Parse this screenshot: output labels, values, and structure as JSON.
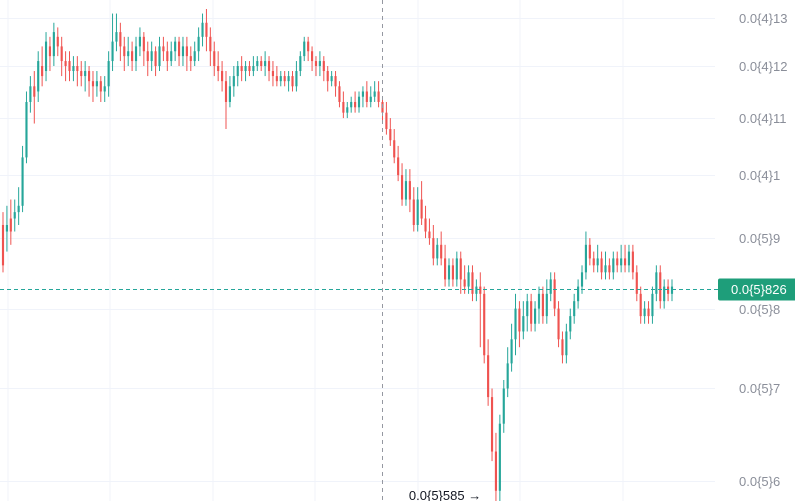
{
  "colors": {
    "up": "#26a69a",
    "down": "#ef5350",
    "grid": "#f0f3fa",
    "axis_text": "#8a8e99",
    "last_price_tag": "#1e9e7a",
    "crosshair": "#9598a1"
  },
  "chart_data": {
    "type": "candlestick",
    "title": "",
    "xlabel": "",
    "ylabel": "",
    "y_scale": "log",
    "ylim": [
      5.8e-06,
      1.34e-05
    ],
    "grid": true,
    "y_ticks": [
      {
        "value": 1.3e-05,
        "label": "0.0{4}13"
      },
      {
        "value": 1.2e-05,
        "label": "0.0{4}12"
      },
      {
        "value": 1.1e-05,
        "label": "0.0{4}11"
      },
      {
        "value": 1e-05,
        "label": "0.0{4}1"
      },
      {
        "value": 9e-06,
        "label": "0.0{5}9"
      },
      {
        "value": 8e-06,
        "label": "0.0{5}8"
      },
      {
        "value": 7e-06,
        "label": "0.0{5}7"
      },
      {
        "value": 6e-06,
        "label": "0.0{5}6"
      }
    ],
    "last_price": {
      "value": 8.26e-06,
      "label": "0.0{5}826"
    },
    "low_marker": {
      "value": 5.85e-06,
      "label": "0.0{5}585",
      "arrow": "→",
      "index": 123
    },
    "crosshair_index": 97,
    "candles": [
      [
        9.2e-06,
        8.6e-06,
        9.4e-06,
        8.5e-06
      ],
      [
        9.1e-06,
        9.2e-06,
        9.5e-06,
        8.8e-06
      ],
      [
        9.3e-06,
        9.1e-06,
        9.6e-06,
        8.9e-06
      ],
      [
        9.3e-06,
        9.4e-06,
        9.6e-06,
        9.1e-06
      ],
      [
        9.4e-06,
        9.5e-06,
        9.8e-06,
        9.2e-06
      ],
      [
        9.5e-06,
        1.03e-05,
        1.05e-05,
        9.4e-06
      ],
      [
        1.03e-05,
        1.13e-05,
        1.15e-05,
        1.02e-05
      ],
      [
        1.13e-05,
        1.16e-05,
        1.18e-05,
        1.11e-05
      ],
      [
        1.16e-05,
        1.14e-05,
        1.19e-05,
        1.09e-05
      ],
      [
        1.15e-05,
        1.21e-05,
        1.23e-05,
        1.13e-05
      ],
      [
        1.2e-05,
        1.18e-05,
        1.24e-05,
        1.16e-05
      ],
      [
        1.19e-05,
        1.25e-05,
        1.27e-05,
        1.17e-05
      ],
      [
        1.24e-05,
        1.22e-05,
        1.26e-05,
        1.19e-05
      ],
      [
        1.22e-05,
        1.27e-05,
        1.29e-05,
        1.2e-05
      ],
      [
        1.26e-05,
        1.24e-05,
        1.28e-05,
        1.22e-05
      ],
      [
        1.24e-05,
        1.21e-05,
        1.26e-05,
        1.18e-05
      ],
      [
        1.21e-05,
        1.2e-05,
        1.23e-05,
        1.17e-05
      ],
      [
        1.21e-05,
        1.19e-05,
        1.23e-05,
        1.17e-05
      ],
      [
        1.19e-05,
        1.2e-05,
        1.22e-05,
        1.17e-05
      ],
      [
        1.2e-05,
        1.19e-05,
        1.22e-05,
        1.16e-05
      ],
      [
        1.19e-05,
        1.18e-05,
        1.21e-05,
        1.16e-05
      ],
      [
        1.18e-05,
        1.19e-05,
        1.21e-05,
        1.15e-05
      ],
      [
        1.19e-05,
        1.17e-05,
        1.2e-05,
        1.14e-05
      ],
      [
        1.17e-05,
        1.16e-05,
        1.19e-05,
        1.13e-05
      ],
      [
        1.16e-05,
        1.17e-05,
        1.19e-05,
        1.14e-05
      ],
      [
        1.17e-05,
        1.15e-05,
        1.18e-05,
        1.13e-05
      ],
      [
        1.15e-05,
        1.16e-05,
        1.18e-05,
        1.13e-05
      ],
      [
        1.16e-05,
        1.21e-05,
        1.23e-05,
        1.14e-05
      ],
      [
        1.21e-05,
        1.25e-05,
        1.31e-05,
        1.19e-05
      ],
      [
        1.25e-05,
        1.27e-05,
        1.31e-05,
        1.23e-05
      ],
      [
        1.27e-05,
        1.24e-05,
        1.29e-05,
        1.21e-05
      ],
      [
        1.24e-05,
        1.22e-05,
        1.26e-05,
        1.19e-05
      ],
      [
        1.22e-05,
        1.23e-05,
        1.26e-05,
        1.2e-05
      ],
      [
        1.23e-05,
        1.21e-05,
        1.25e-05,
        1.19e-05
      ],
      [
        1.21e-05,
        1.24e-05,
        1.26e-05,
        1.19e-05
      ],
      [
        1.24e-05,
        1.26e-05,
        1.28e-05,
        1.22e-05
      ],
      [
        1.26e-05,
        1.23e-05,
        1.27e-05,
        1.2e-05
      ],
      [
        1.23e-05,
        1.21e-05,
        1.25e-05,
        1.18e-05
      ],
      [
        1.21e-05,
        1.23e-05,
        1.25e-05,
        1.19e-05
      ],
      [
        1.23e-05,
        1.2e-05,
        1.24e-05,
        1.18e-05
      ],
      [
        1.2e-05,
        1.24e-05,
        1.26e-05,
        1.19e-05
      ],
      [
        1.24e-05,
        1.23e-05,
        1.26e-05,
        1.21e-05
      ],
      [
        1.23e-05,
        1.21e-05,
        1.25e-05,
        1.19e-05
      ],
      [
        1.21e-05,
        1.23e-05,
        1.25e-05,
        1.2e-05
      ],
      [
        1.23e-05,
        1.25e-05,
        1.26e-05,
        1.21e-05
      ],
      [
        1.25e-05,
        1.22e-05,
        1.26e-05,
        1.2e-05
      ],
      [
        1.22e-05,
        1.24e-05,
        1.26e-05,
        1.2e-05
      ],
      [
        1.24e-05,
        1.22e-05,
        1.26e-05,
        1.19e-05
      ],
      [
        1.22e-05,
        1.21e-05,
        1.24e-05,
        1.19e-05
      ],
      [
        1.21e-05,
        1.23e-05,
        1.25e-05,
        1.2e-05
      ],
      [
        1.23e-05,
        1.26e-05,
        1.28e-05,
        1.21e-05
      ],
      [
        1.26e-05,
        1.29e-05,
        1.31e-05,
        1.24e-05
      ],
      [
        1.29e-05,
        1.26e-05,
        1.32e-05,
        1.23e-05
      ],
      [
        1.26e-05,
        1.23e-05,
        1.28e-05,
        1.2e-05
      ],
      [
        1.23e-05,
        1.2e-05,
        1.25e-05,
        1.18e-05
      ],
      [
        1.2e-05,
        1.19e-05,
        1.23e-05,
        1.17e-05
      ],
      [
        1.19e-05,
        1.17e-05,
        1.21e-05,
        1.15e-05
      ],
      [
        1.17e-05,
        1.13e-05,
        1.19e-05,
        1.08e-05
      ],
      [
        1.13e-05,
        1.16e-05,
        1.18e-05,
        1.12e-05
      ],
      [
        1.16e-05,
        1.18e-05,
        1.2e-05,
        1.14e-05
      ],
      [
        1.18e-05,
        1.2e-05,
        1.21e-05,
        1.16e-05
      ],
      [
        1.2e-05,
        1.19e-05,
        1.22e-05,
        1.17e-05
      ],
      [
        1.19e-05,
        1.2e-05,
        1.21e-05,
        1.17e-05
      ],
      [
        1.2e-05,
        1.19e-05,
        1.21e-05,
        1.18e-05
      ],
      [
        1.19e-05,
        1.2e-05,
        1.22e-05,
        1.18e-05
      ],
      [
        1.2e-05,
        1.21e-05,
        1.22e-05,
        1.19e-05
      ],
      [
        1.21e-05,
        1.2e-05,
        1.22e-05,
        1.19e-05
      ],
      [
        1.2e-05,
        1.21e-05,
        1.23e-05,
        1.18e-05
      ],
      [
        1.21e-05,
        1.19e-05,
        1.22e-05,
        1.17e-05
      ],
      [
        1.19e-05,
        1.18e-05,
        1.21e-05,
        1.16e-05
      ],
      [
        1.18e-05,
        1.17e-05,
        1.2e-05,
        1.16e-05
      ],
      [
        1.17e-05,
        1.18e-05,
        1.19e-05,
        1.16e-05
      ],
      [
        1.18e-05,
        1.17e-05,
        1.19e-05,
        1.16e-05
      ],
      [
        1.17e-05,
        1.18e-05,
        1.19e-05,
        1.15e-05
      ],
      [
        1.18e-05,
        1.16e-05,
        1.19e-05,
        1.15e-05
      ],
      [
        1.16e-05,
        1.19e-05,
        1.21e-05,
        1.15e-05
      ],
      [
        1.19e-05,
        1.22e-05,
        1.23e-05,
        1.18e-05
      ],
      [
        1.22e-05,
        1.25e-05,
        1.26e-05,
        1.21e-05
      ],
      [
        1.25e-05,
        1.23e-05,
        1.26e-05,
        1.21e-05
      ],
      [
        1.23e-05,
        1.21e-05,
        1.24e-05,
        1.19e-05
      ],
      [
        1.21e-05,
        1.2e-05,
        1.22e-05,
        1.18e-05
      ],
      [
        1.2e-05,
        1.21e-05,
        1.23e-05,
        1.18e-05
      ],
      [
        1.21e-05,
        1.19e-05,
        1.22e-05,
        1.17e-05
      ],
      [
        1.19e-05,
        1.17e-05,
        1.2e-05,
        1.15e-05
      ],
      [
        1.17e-05,
        1.18e-05,
        1.19e-05,
        1.16e-05
      ],
      [
        1.18e-05,
        1.16e-05,
        1.19e-05,
        1.14e-05
      ],
      [
        1.16e-05,
        1.13e-05,
        1.17e-05,
        1.12e-05
      ],
      [
        1.13e-05,
        1.11e-05,
        1.15e-05,
        1.1e-05
      ],
      [
        1.11e-05,
        1.12e-05,
        1.13e-05,
        1.1e-05
      ],
      [
        1.12e-05,
        1.13e-05,
        1.14e-05,
        1.11e-05
      ],
      [
        1.13e-05,
        1.12e-05,
        1.15e-05,
        1.11e-05
      ],
      [
        1.12e-05,
        1.14e-05,
        1.15e-05,
        1.11e-05
      ],
      [
        1.14e-05,
        1.15e-05,
        1.16e-05,
        1.12e-05
      ],
      [
        1.15e-05,
        1.13e-05,
        1.17e-05,
        1.12e-05
      ],
      [
        1.13e-05,
        1.14e-05,
        1.16e-05,
        1.12e-05
      ],
      [
        1.14e-05,
        1.15e-05,
        1.17e-05,
        1.13e-05
      ],
      [
        1.15e-05,
        1.13e-05,
        1.17e-05,
        1.12e-05
      ],
      [
        1.13e-05,
        1.11e-05,
        1.14e-05,
        1.09e-05
      ],
      [
        1.11e-05,
        1.08e-05,
        1.13e-05,
        1.07e-05
      ],
      [
        1.08e-05,
        1.06e-05,
        1.1e-05,
        1.05e-05
      ],
      [
        1.06e-05,
        1.03e-05,
        1.08e-05,
        1.02e-05
      ],
      [
        1.03e-05,
        1e-05,
        1.05e-05,
        9.9e-06
      ],
      [
        1e-05,
        9.6e-06,
        1.02e-05,
        9.5e-06
      ],
      [
        9.6e-06,
        9.9e-06,
        1.01e-05,
        9.5e-06
      ],
      [
        9.9e-06,
        9.6e-06,
        1.01e-05,
        9.4e-06
      ],
      [
        9.6e-06,
        9.2e-06,
        9.8e-06,
        9.1e-06
      ],
      [
        9.2e-06,
        9.6e-06,
        9.8e-06,
        9.1e-06
      ],
      [
        9.6e-06,
        9.3e-06,
        9.9e-06,
        9.2e-06
      ],
      [
        9.3e-06,
        9.1e-06,
        9.5e-06,
        9e-06
      ],
      [
        9.1e-06,
        9e-06,
        9.3e-06,
        8.9e-06
      ],
      [
        9e-06,
        8.7e-06,
        9.2e-06,
        8.6e-06
      ],
      [
        8.7e-06,
        8.9e-06,
        9e-06,
        8.6e-06
      ],
      [
        8.9e-06,
        8.7e-06,
        9.1e-06,
        8.6e-06
      ],
      [
        8.7e-06,
        8.4e-06,
        8.9e-06,
        8.3e-06
      ],
      [
        8.4e-06,
        8.6e-06,
        8.7e-06,
        8.3e-06
      ],
      [
        8.6e-06,
        8.4e-06,
        8.7e-06,
        8.3e-06
      ],
      [
        8.4e-06,
        8.7e-06,
        8.8e-06,
        8.3e-06
      ],
      [
        8.7e-06,
        8.4e-06,
        8.8e-06,
        8.2e-06
      ],
      [
        8.4e-06,
        8.3e-06,
        8.6e-06,
        8.2e-06
      ],
      [
        8.3e-06,
        8.5e-06,
        8.6e-06,
        8.2e-06
      ],
      [
        8.5e-06,
        8.2e-06,
        8.6e-06,
        8.1e-06
      ],
      [
        8.2e-06,
        8.3e-06,
        8.4e-06,
        8.1e-06
      ],
      [
        8.3e-06,
        8.2e-06,
        8.5e-06,
        7.5e-06
      ],
      [
        8.2e-06,
        7.4e-06,
        8.3e-06,
        7.3e-06
      ],
      [
        7.4e-06,
        6.9e-06,
        7.6e-06,
        6.8e-06
      ],
      [
        6.9e-06,
        6.3e-06,
        7e-06,
        6.2e-06
      ],
      [
        6.3e-06,
        5.9e-06,
        6.5e-06,
        5.8e-06
      ],
      [
        5.9e-06,
        6.6e-06,
        6.7e-06,
        5.8e-06
      ],
      [
        6.6e-06,
        7e-06,
        7.1e-06,
        6.5e-06
      ],
      [
        7e-06,
        7.3e-06,
        7.5e-06,
        6.9e-06
      ],
      [
        7.3e-06,
        7.6e-06,
        7.8e-06,
        7.2e-06
      ],
      [
        7.6e-06,
        8e-06,
        8.2e-06,
        7.4e-06
      ],
      [
        8e-06,
        7.7e-06,
        8.1e-06,
        7.5e-06
      ],
      [
        7.7e-06,
        7.9e-06,
        8.1e-06,
        7.6e-06
      ],
      [
        7.9e-06,
        8.1e-06,
        8.2e-06,
        7.7e-06
      ],
      [
        8.1e-06,
        7.8e-06,
        8.2e-06,
        7.7e-06
      ],
      [
        7.8e-06,
        8e-06,
        8.1e-06,
        7.7e-06
      ],
      [
        8e-06,
        8.2e-06,
        8.3e-06,
        7.8e-06
      ],
      [
        8.2e-06,
        7.9e-06,
        8.3e-06,
        7.8e-06
      ],
      [
        7.9e-06,
        8.2e-06,
        8.4e-06,
        7.8e-06
      ],
      [
        8.2e-06,
        8.4e-06,
        8.5e-06,
        8.1e-06
      ],
      [
        8.4e-06,
        8e-06,
        8.5e-06,
        7.9e-06
      ],
      [
        8e-06,
        7.6e-06,
        8.1e-06,
        7.5e-06
      ],
      [
        7.6e-06,
        7.4e-06,
        7.7e-06,
        7.3e-06
      ],
      [
        7.4e-06,
        7.7e-06,
        7.8e-06,
        7.3e-06
      ],
      [
        7.7e-06,
        7.9e-06,
        8e-06,
        7.6e-06
      ],
      [
        7.9e-06,
        8.1e-06,
        8.2e-06,
        7.8e-06
      ],
      [
        8.1e-06,
        8.3e-06,
        8.4e-06,
        8e-06
      ],
      [
        8.3e-06,
        8.5e-06,
        8.6e-06,
        8.2e-06
      ],
      [
        8.5e-06,
        8.9e-06,
        9.1e-06,
        8.4e-06
      ],
      [
        8.9e-06,
        8.7e-06,
        9e-06,
        8.6e-06
      ],
      [
        8.7e-06,
        8.6e-06,
        8.8e-06,
        8.5e-06
      ],
      [
        8.6e-06,
        8.7e-06,
        8.9e-06,
        8.5e-06
      ],
      [
        8.7e-06,
        8.5e-06,
        8.8e-06,
        8.4e-06
      ],
      [
        8.5e-06,
        8.6e-06,
        8.8e-06,
        8.4e-06
      ],
      [
        8.6e-06,
        8.5e-06,
        8.7e-06,
        8.4e-06
      ],
      [
        8.5e-06,
        8.7e-06,
        8.8e-06,
        8.4e-06
      ],
      [
        8.7e-06,
        8.6e-06,
        8.8e-06,
        8.5e-06
      ],
      [
        8.6e-06,
        8.7e-06,
        8.9e-06,
        8.5e-06
      ],
      [
        8.7e-06,
        8.6e-06,
        8.9e-06,
        8.5e-06
      ],
      [
        8.6e-06,
        8.8e-06,
        8.9e-06,
        8.5e-06
      ],
      [
        8.8e-06,
        8.5e-06,
        8.9e-06,
        8.4e-06
      ],
      [
        8.5e-06,
        8.2e-06,
        8.6e-06,
        8.1e-06
      ],
      [
        8.2e-06,
        7.9e-06,
        8.3e-06,
        7.8e-06
      ],
      [
        7.9e-06,
        8e-06,
        8.1e-06,
        7.8e-06
      ],
      [
        8e-06,
        7.9e-06,
        8.1e-06,
        7.8e-06
      ],
      [
        7.9e-06,
        8.2e-06,
        8.3e-06,
        7.8e-06
      ],
      [
        8.2e-06,
        8.5e-06,
        8.6e-06,
        8.1e-06
      ],
      [
        8.5e-06,
        8.1e-06,
        8.6e-06,
        8e-06
      ],
      [
        8.1e-06,
        8.3e-06,
        8.4e-06,
        8e-06
      ],
      [
        8.3e-06,
        8.2e-06,
        8.4e-06,
        8.1e-06
      ],
      [
        8.2e-06,
        8.3e-06,
        8.4e-06,
        8.1e-06
      ]
    ]
  }
}
